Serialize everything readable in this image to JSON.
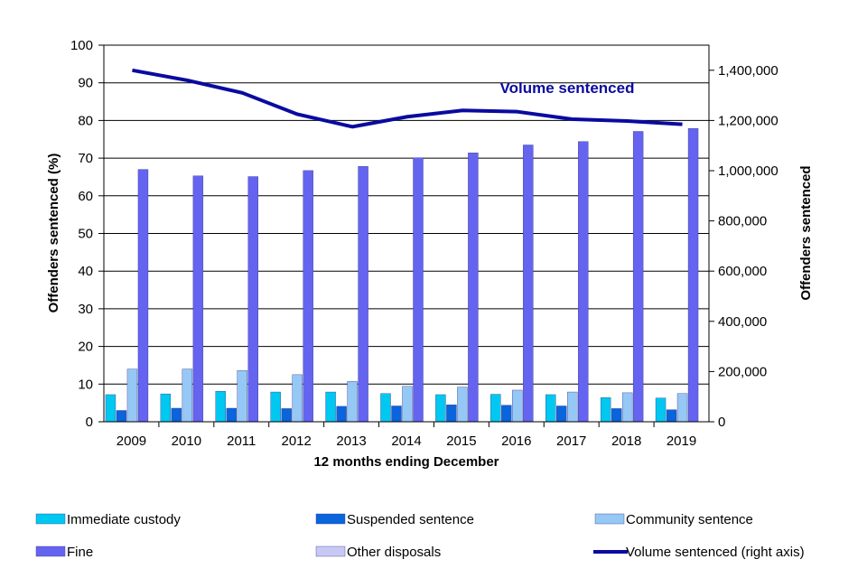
{
  "chart_data": {
    "type": "bar",
    "categories": [
      "2009",
      "2010",
      "2011",
      "2012",
      "2013",
      "2014",
      "2015",
      "2016",
      "2017",
      "2018",
      "2019"
    ],
    "series": [
      {
        "name": "Immediate custody",
        "color": "#00c8f0",
        "values": [
          7.2,
          7.4,
          8.1,
          7.9,
          7.9,
          7.5,
          7.2,
          7.3,
          7.2,
          6.4,
          6.3
        ]
      },
      {
        "name": "Suspended sentence",
        "color": "#0a64dc",
        "values": [
          3.0,
          3.6,
          3.6,
          3.5,
          4.1,
          4.2,
          4.5,
          4.4,
          4.2,
          3.5,
          3.2
        ]
      },
      {
        "name": "Community sentence",
        "color": "#96c8f5",
        "values": [
          14.0,
          14.0,
          13.6,
          12.5,
          10.7,
          9.4,
          9.2,
          8.4,
          7.9,
          7.7,
          7.5
        ]
      },
      {
        "name": "Fine",
        "color": "#6464f0",
        "values": [
          67.0,
          65.3,
          65.1,
          66.7,
          67.8,
          70.1,
          71.4,
          73.5,
          74.4,
          77.1,
          77.9
        ]
      },
      {
        "name": "Other disposals",
        "color": "#c8c8f5",
        "values": [
          0,
          0,
          0,
          0,
          0,
          0,
          0,
          0,
          0,
          0,
          0
        ]
      }
    ],
    "line_series": {
      "name": "Volume sentenced (right axis)",
      "color": "#0a0aa0",
      "axis": "right",
      "values": [
        1400000,
        1360000,
        1310000,
        1225000,
        1175000,
        1215000,
        1240000,
        1235000,
        1205000,
        1198000,
        1185000
      ]
    },
    "annotation": "Volume sentenced",
    "xlabel": "12 months ending December",
    "ylabel": "Offenders sentenced (%)",
    "ylabel_right": "Offenders sentenced",
    "ylim": [
      0,
      100
    ],
    "ylim_right": [
      0,
      1500000
    ],
    "yticks": [
      "0",
      "10",
      "20",
      "30",
      "40",
      "50",
      "60",
      "70",
      "80",
      "90",
      "100"
    ],
    "yticks_right": [
      "0",
      "200,000",
      "400,000",
      "600,000",
      "800,000",
      "1,000,000",
      "1,200,000",
      "1,400,000"
    ],
    "grid": true,
    "legend": "bottom"
  }
}
